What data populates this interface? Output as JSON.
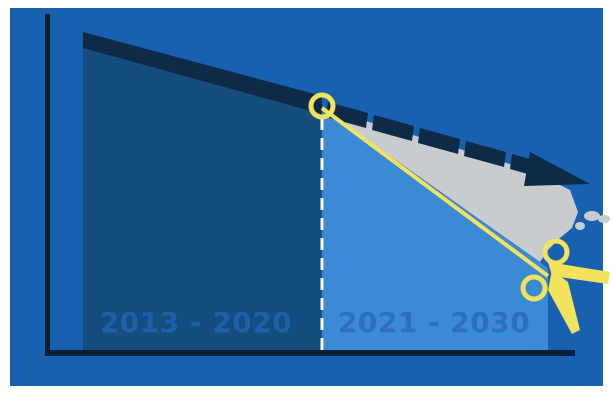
{
  "colors": {
    "frame_blue": "#1761b0",
    "past_area": "#154d7e",
    "future_area": "#3a8ad6",
    "trend_arrow": "#0e2a46",
    "axis": "#0b1f36",
    "removed_gray": "#c9ccce",
    "scissors_yellow": "#f2e25c",
    "divider_white": "#ffffff",
    "label_past": "#1d5fa8",
    "label_future": "#2f6fbf"
  },
  "periods": [
    {
      "label": "2013 - 2020"
    },
    {
      "label": "2021 - 2030"
    }
  ],
  "icons": {
    "cut_point": "circle-marker-icon",
    "scissors": "scissors-icon"
  }
}
